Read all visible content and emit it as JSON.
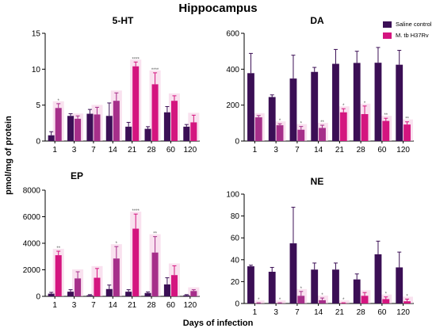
{
  "figure": {
    "title": "Hippocampus",
    "ylabel": "pmol/mg of protein",
    "xlabel": "Days of infection"
  },
  "legend": {
    "items": [
      {
        "label": "Saline control",
        "color": "#3b0f55"
      },
      {
        "label": "M. tb H37Rv",
        "color": "#d4157f"
      }
    ]
  },
  "colors": {
    "control": "#3b0f55",
    "infected": "#d4157f",
    "infected_alt": "#a62f8a",
    "highlight": "#f4c8e2"
  },
  "chart_data": [
    {
      "type": "bar",
      "title": "5-HT",
      "categories": [
        "1",
        "3",
        "7",
        "14",
        "21",
        "28",
        "60",
        "120"
      ],
      "ylim": [
        0,
        15
      ],
      "yticks": [
        0,
        5,
        10,
        15
      ],
      "series": [
        {
          "name": "Saline control",
          "values": [
            0.8,
            3.5,
            3.8,
            3.5,
            2.0,
            1.7,
            4.0,
            2.0
          ],
          "errors": [
            0.5,
            0.3,
            0.6,
            1.8,
            0.6,
            0.3,
            0.8,
            0.3
          ]
        },
        {
          "name": "M. tb H37Rv",
          "values": [
            4.6,
            3.1,
            3.7,
            5.6,
            10.4,
            7.9,
            5.6,
            2.6
          ],
          "errors": [
            0.6,
            0.4,
            1.0,
            1.1,
            0.6,
            1.6,
            0.7,
            1.0
          ]
        }
      ],
      "annotations": [
        "*",
        "",
        "",
        "",
        "****",
        "****",
        "",
        ""
      ]
    },
    {
      "type": "bar",
      "title": "DA",
      "categories": [
        "1",
        "3",
        "7",
        "14",
        "21",
        "28",
        "60",
        "120"
      ],
      "ylim": [
        0,
        600
      ],
      "yticks": [
        0,
        200,
        400,
        600
      ],
      "series": [
        {
          "name": "Saline control",
          "values": [
            378,
            245,
            348,
            385,
            430,
            435,
            436,
            425
          ],
          "errors": [
            110,
            12,
            130,
            25,
            80,
            65,
            85,
            80
          ]
        },
        {
          "name": "M. tb H37Rv",
          "values": [
            132,
            88,
            63,
            73,
            160,
            150,
            112,
            92
          ],
          "errors": [
            10,
            8,
            18,
            15,
            20,
            45,
            15,
            15
          ]
        }
      ],
      "annotations": [
        "",
        "*",
        "*",
        "**",
        "*",
        "*",
        "**",
        "**"
      ]
    },
    {
      "type": "bar",
      "title": "EP",
      "categories": [
        "1",
        "3",
        "7",
        "14",
        "21",
        "28",
        "60",
        "120"
      ],
      "ylim": [
        0,
        8000
      ],
      "yticks": [
        0,
        2000,
        4000,
        6000,
        8000
      ],
      "series": [
        {
          "name": "Saline control",
          "values": [
            200,
            350,
            80,
            550,
            350,
            250,
            900,
            80
          ],
          "errors": [
            100,
            150,
            50,
            300,
            150,
            80,
            500,
            50
          ]
        },
        {
          "name": "M. tb H37Rv",
          "values": [
            3100,
            1350,
            1400,
            2850,
            5100,
            3300,
            1600,
            400
          ],
          "errors": [
            300,
            500,
            700,
            900,
            1100,
            1200,
            700,
            100
          ]
        }
      ],
      "annotations": [
        "**",
        "",
        "",
        "*",
        "****",
        "**",
        "",
        ""
      ]
    },
    {
      "type": "bar",
      "title": "NE",
      "categories": [
        "1",
        "3",
        "7",
        "14",
        "21",
        "28",
        "60",
        "120"
      ],
      "ylim": [
        0,
        100
      ],
      "yticks": [
        0,
        20,
        40,
        60,
        80,
        100
      ],
      "series": [
        {
          "name": "Saline control",
          "values": [
            34,
            29,
            55,
            31,
            31,
            22,
            45,
            33
          ],
          "errors": [
            1,
            4,
            33,
            6,
            6,
            5,
            12,
            14
          ]
        },
        {
          "name": "M. tb H37Rv",
          "values": [
            0.3,
            0.3,
            7,
            3,
            0.3,
            7,
            4,
            2
          ],
          "errors": [
            0.3,
            0.3,
            4,
            2,
            0.3,
            3,
            2,
            2
          ]
        }
      ],
      "annotations": [
        "*",
        "*",
        "*",
        "*",
        "*",
        "",
        "*",
        "*"
      ]
    }
  ]
}
